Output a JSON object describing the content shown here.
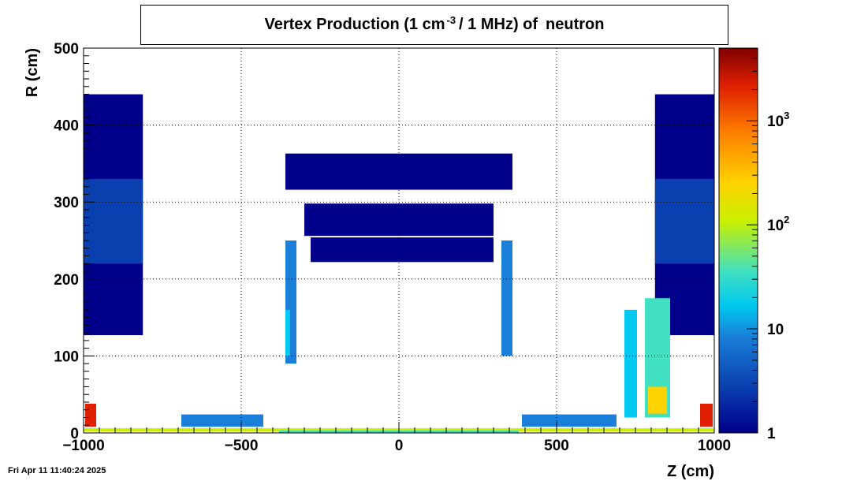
{
  "title": {
    "prefix": "Vertex Production (1 cm",
    "exponent": "-3",
    "middle": "/ 1 MHz) of",
    "particle": "neutron"
  },
  "timestamp": "Fri Apr 11 11:40:24 2025",
  "colors": {
    "palette": [
      "#00008b",
      "#0a3fb0",
      "#1a7fd8",
      "#00c8f0",
      "#40e0c0",
      "#c8f000",
      "#ffd200",
      "#ff8000",
      "#e02000",
      "#800000"
    ],
    "background": "#ffffff",
    "grid": "#000000"
  },
  "chart_data": {
    "type": "heatmap",
    "title": "Vertex Production (1 cm-3 / 1 MHz) of neutron",
    "xlabel": "Z (cm)",
    "ylabel": "R (cm)",
    "xlim": [
      -1000,
      1000
    ],
    "ylim": [
      0,
      500
    ],
    "x_ticks": [
      {
        "value": -1000,
        "label": "−1000"
      },
      {
        "value": -500,
        "label": "−500"
      },
      {
        "value": 0,
        "label": "0"
      },
      {
        "value": 500,
        "label": "500"
      },
      {
        "value": 1000,
        "label": "1000"
      }
    ],
    "y_ticks": [
      {
        "value": 0,
        "label": "0"
      },
      {
        "value": 100,
        "label": "100"
      },
      {
        "value": 200,
        "label": "200"
      },
      {
        "value": 300,
        "label": "300"
      },
      {
        "value": 400,
        "label": "400"
      },
      {
        "value": 500,
        "label": "500"
      }
    ],
    "z_scale": "log",
    "zlim": [
      1,
      5000
    ],
    "z_ticks": [
      {
        "value": 1,
        "base": "1",
        "exp": ""
      },
      {
        "value": 10,
        "base": "10",
        "exp": ""
      },
      {
        "value": 100,
        "base": "10",
        "exp": "2"
      },
      {
        "value": 1000,
        "base": "10",
        "exp": "3"
      }
    ],
    "grid": true,
    "regions": [
      {
        "z": [
          -1000,
          -812
        ],
        "r": [
          127,
          440
        ],
        "value": 2
      },
      {
        "z": [
          -1000,
          -812
        ],
        "r": [
          220,
          330
        ],
        "value": 4
      },
      {
        "z": [
          812,
          1000
        ],
        "r": [
          127,
          440
        ],
        "value": 2
      },
      {
        "z": [
          812,
          1000
        ],
        "r": [
          220,
          330
        ],
        "value": 4
      },
      {
        "z": [
          -360,
          360
        ],
        "r": [
          316,
          363
        ],
        "value": 1.5
      },
      {
        "z": [
          -300,
          300
        ],
        "r": [
          256,
          298
        ],
        "value": 2
      },
      {
        "z": [
          -280,
          300
        ],
        "r": [
          222,
          254
        ],
        "value": 1.8
      },
      {
        "z": [
          -360,
          -325
        ],
        "r": [
          90,
          250
        ],
        "value": 8
      },
      {
        "z": [
          -360,
          -345
        ],
        "r": [
          100,
          160
        ],
        "value": 30
      },
      {
        "z": [
          325,
          360
        ],
        "r": [
          100,
          250
        ],
        "value": 8
      },
      {
        "z": [
          715,
          755
        ],
        "r": [
          20,
          160
        ],
        "value": 15
      },
      {
        "z": [
          780,
          860
        ],
        "r": [
          20,
          175
        ],
        "value": 40
      },
      {
        "z": [
          790,
          850
        ],
        "r": [
          25,
          60
        ],
        "value": 300
      },
      {
        "z": [
          -995,
          -960
        ],
        "r": [
          8,
          38
        ],
        "value": 2000
      },
      {
        "z": [
          955,
          995
        ],
        "r": [
          8,
          38
        ],
        "value": 2000
      },
      {
        "z": [
          -690,
          -430
        ],
        "r": [
          8,
          24
        ],
        "value": 6
      },
      {
        "z": [
          390,
          690
        ],
        "r": [
          8,
          24
        ],
        "value": 6
      },
      {
        "z": [
          -1000,
          1000
        ],
        "r": [
          2,
          6
        ],
        "value": 150
      },
      {
        "z": [
          -380,
          380
        ],
        "r": [
          0,
          3
        ],
        "value": 60
      }
    ]
  }
}
